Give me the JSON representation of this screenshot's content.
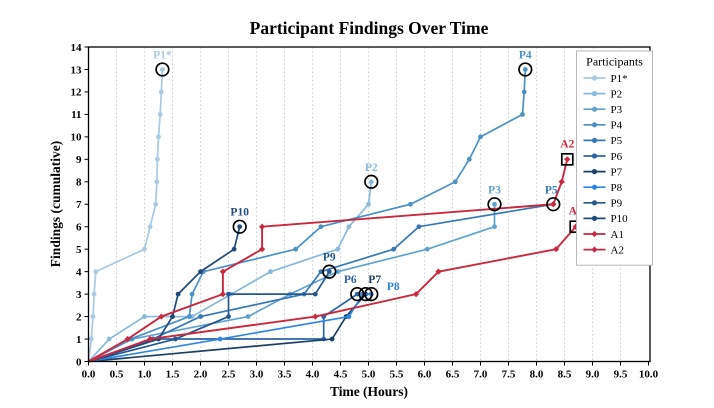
{
  "figure": {
    "title": "Participant Findings Over Time",
    "x_label": "Time (Hours)",
    "y_label": "Findings (cumulative)",
    "legend_title": "Participants",
    "colors": {
      "axis": "#000000",
      "grid": "#c9c9c9",
      "background": "#ffffff",
      "accent_red": "#c9293f"
    }
  },
  "chart_data": {
    "type": "line",
    "title": "Participant Findings Over Time",
    "xlabel": "Time (Hours)",
    "ylabel": "Findings (cumulative)",
    "xlim": [
      0,
      10
    ],
    "ylim": [
      0,
      14
    ],
    "grid": "vertical-dotted",
    "legend_position": "upper-right-inside",
    "legend_title": "Participants",
    "x_ticks": [
      {
        "v": 0,
        "label": "0.0"
      },
      {
        "v": 0.5,
        "label": "0.5"
      },
      {
        "v": 1,
        "label": "1.0"
      },
      {
        "v": 1.5,
        "label": "1.5"
      },
      {
        "v": 2,
        "label": "2.0"
      },
      {
        "v": 2.5,
        "label": "2.5"
      },
      {
        "v": 3,
        "label": "3.0"
      },
      {
        "v": 3.5,
        "label": "3.5"
      },
      {
        "v": 4,
        "label": "4.0"
      },
      {
        "v": 4.5,
        "label": "4.5"
      },
      {
        "v": 5,
        "label": "5.0"
      },
      {
        "v": 5.5,
        "label": "5.5"
      },
      {
        "v": 6,
        "label": "6.0"
      },
      {
        "v": 6.5,
        "label": "6.5"
      },
      {
        "v": 7,
        "label": "7.0"
      },
      {
        "v": 7.5,
        "label": "7.5"
      },
      {
        "v": 8,
        "label": "8.0"
      },
      {
        "v": 8.5,
        "label": "8.5"
      },
      {
        "v": 9,
        "label": "9.0"
      },
      {
        "v": 9.5,
        "label": "9.5"
      },
      {
        "v": 10,
        "label": "10.0"
      }
    ],
    "y_ticks": [
      {
        "v": 0,
        "label": "0"
      },
      {
        "v": 1,
        "label": "1"
      },
      {
        "v": 2,
        "label": "2"
      },
      {
        "v": 3,
        "label": "3"
      },
      {
        "v": 4,
        "label": "4"
      },
      {
        "v": 5,
        "label": "5"
      },
      {
        "v": 6,
        "label": "6"
      },
      {
        "v": 7,
        "label": "7"
      },
      {
        "v": 8,
        "label": "8"
      },
      {
        "v": 9,
        "label": "9"
      },
      {
        "v": 10,
        "label": "10"
      },
      {
        "v": 11,
        "label": "11"
      },
      {
        "v": 12,
        "label": "12"
      },
      {
        "v": 13,
        "label": "13"
      },
      {
        "v": 14,
        "label": "14"
      }
    ],
    "series": [
      {
        "name": "P1*",
        "color": "#a9c9e4",
        "marker": "circle",
        "end_shape": "ring",
        "label": {
          "text": "P1*",
          "color": "#a9c9e4",
          "dx": 0,
          "dy": -11
        },
        "points": [
          [
            0,
            0
          ],
          [
            0.05,
            1
          ],
          [
            0.08,
            2
          ],
          [
            0.1,
            3
          ],
          [
            0.13,
            4
          ],
          [
            1.0,
            5
          ],
          [
            1.1,
            6
          ],
          [
            1.2,
            7
          ],
          [
            1.22,
            8
          ],
          [
            1.23,
            9
          ],
          [
            1.25,
            10
          ],
          [
            1.28,
            11
          ],
          [
            1.3,
            12
          ],
          [
            1.32,
            13
          ]
        ]
      },
      {
        "name": "P2",
        "color": "#88b9dc",
        "marker": "circle",
        "end_shape": "ring",
        "label": {
          "text": "P2",
          "color": "#88b9dc",
          "dx": 0,
          "dy": -11
        },
        "points": [
          [
            0,
            0
          ],
          [
            0.37,
            1
          ],
          [
            1.0,
            2
          ],
          [
            1.85,
            2
          ],
          [
            2.55,
            3
          ],
          [
            3.25,
            4
          ],
          [
            4.45,
            5
          ],
          [
            4.65,
            6
          ],
          [
            5.0,
            7
          ],
          [
            5.05,
            8
          ]
        ]
      },
      {
        "name": "P3",
        "color": "#5fa2d0",
        "marker": "circle",
        "end_shape": "ring",
        "label": {
          "text": "P3",
          "color": "#5fa2d0",
          "dx": 0,
          "dy": -11
        },
        "points": [
          [
            0,
            0
          ],
          [
            0.78,
            1
          ],
          [
            2.85,
            2
          ],
          [
            3.6,
            3
          ],
          [
            4.45,
            4
          ],
          [
            6.05,
            5
          ],
          [
            7.25,
            6
          ],
          [
            7.25,
            7
          ]
        ]
      },
      {
        "name": "P4",
        "color": "#4a92c6",
        "marker": "circle",
        "end_shape": "ring",
        "label": {
          "text": "P4",
          "color": "#4a92c6",
          "dx": 0,
          "dy": -11
        },
        "points": [
          [
            0,
            0
          ],
          [
            0.75,
            1
          ],
          [
            1.8,
            2
          ],
          [
            1.85,
            3
          ],
          [
            2.05,
            4
          ],
          [
            3.7,
            5
          ],
          [
            4.15,
            6
          ],
          [
            5.75,
            7
          ],
          [
            6.55,
            8
          ],
          [
            6.8,
            9
          ],
          [
            7.0,
            10
          ],
          [
            7.75,
            11
          ],
          [
            7.78,
            12
          ],
          [
            7.8,
            13
          ]
        ]
      },
      {
        "name": "P5",
        "color": "#3579b5",
        "marker": "circle",
        "end_shape": "ring",
        "label": {
          "text": "P5",
          "color": "#3579b5",
          "dx": -2,
          "dy": -11
        },
        "points": [
          [
            0,
            0
          ],
          [
            1.15,
            1
          ],
          [
            2.0,
            2
          ],
          [
            3.85,
            3
          ],
          [
            4.15,
            4
          ],
          [
            5.45,
            5
          ],
          [
            5.9,
            6
          ],
          [
            8.3,
            7
          ]
        ]
      },
      {
        "name": "P6",
        "color": "#2c64a5",
        "marker": "circle",
        "end_shape": "ring",
        "label": {
          "text": "P6",
          "color": "#2c64a5",
          "dx": -7,
          "dy": -11
        },
        "points": [
          [
            0,
            0
          ],
          [
            1.15,
            1
          ],
          [
            4.2,
            1
          ],
          [
            4.2,
            2
          ],
          [
            4.8,
            3
          ]
        ]
      },
      {
        "name": "P7",
        "color": "#1b4066",
        "marker": "circle",
        "end_shape": "ring",
        "label": {
          "text": "P7",
          "color": "#1b4066",
          "dx": 9,
          "dy": -11
        },
        "points": [
          [
            0,
            0
          ],
          [
            4.35,
            1
          ],
          [
            4.6,
            2
          ],
          [
            4.95,
            3
          ]
        ]
      },
      {
        "name": "P8",
        "color": "#2e86e0",
        "marker": "circle",
        "end_shape": "ring",
        "label": {
          "text": "P8",
          "color": "#2e86e0",
          "dx": 22,
          "dy": -4
        },
        "points": [
          [
            0,
            0
          ],
          [
            2.35,
            1
          ],
          [
            4.65,
            2
          ],
          [
            4.9,
            3
          ],
          [
            5.05,
            3
          ]
        ]
      },
      {
        "name": "P9",
        "color": "#24588f",
        "marker": "circle",
        "end_shape": "ring",
        "label": {
          "text": "P9",
          "color": "#24588f",
          "dx": 0,
          "dy": -11
        },
        "points": [
          [
            0,
            0
          ],
          [
            1.55,
            1
          ],
          [
            2.5,
            2
          ],
          [
            2.5,
            3
          ],
          [
            4.05,
            3
          ],
          [
            4.3,
            4
          ]
        ]
      },
      {
        "name": "P10",
        "color": "#1e4a7c",
        "marker": "circle",
        "end_shape": "ring",
        "label": {
          "text": "P10",
          "color": "#1e4a7c",
          "dx": 0,
          "dy": -11
        },
        "points": [
          [
            0,
            0
          ],
          [
            1.25,
            1
          ],
          [
            1.5,
            2
          ],
          [
            1.6,
            3
          ],
          [
            2.0,
            4
          ],
          [
            2.6,
            5
          ],
          [
            2.7,
            6
          ]
        ]
      },
      {
        "name": "A1",
        "color": "#c9293f",
        "marker": "diamond",
        "end_shape": "square",
        "label": {
          "text": "A1",
          "color": "#c9293f",
          "dx": 0,
          "dy": -12
        },
        "points": [
          [
            0,
            0
          ],
          [
            1.1,
            1
          ],
          [
            4.05,
            2
          ],
          [
            5.85,
            3
          ],
          [
            6.25,
            4
          ],
          [
            8.35,
            5
          ],
          [
            8.7,
            6
          ]
        ]
      },
      {
        "name": "A2",
        "color": "#c9293f",
        "marker": "diamond",
        "end_shape": "square",
        "label": {
          "text": "A2",
          "color": "#c9293f",
          "dx": 0,
          "dy": -12
        },
        "points": [
          [
            0,
            0
          ],
          [
            0.7,
            1
          ],
          [
            1.3,
            2
          ],
          [
            2.4,
            3
          ],
          [
            2.4,
            4
          ],
          [
            3.1,
            5
          ],
          [
            3.1,
            6
          ],
          [
            8.3,
            7
          ],
          [
            8.45,
            8
          ],
          [
            8.55,
            9
          ]
        ]
      }
    ]
  }
}
